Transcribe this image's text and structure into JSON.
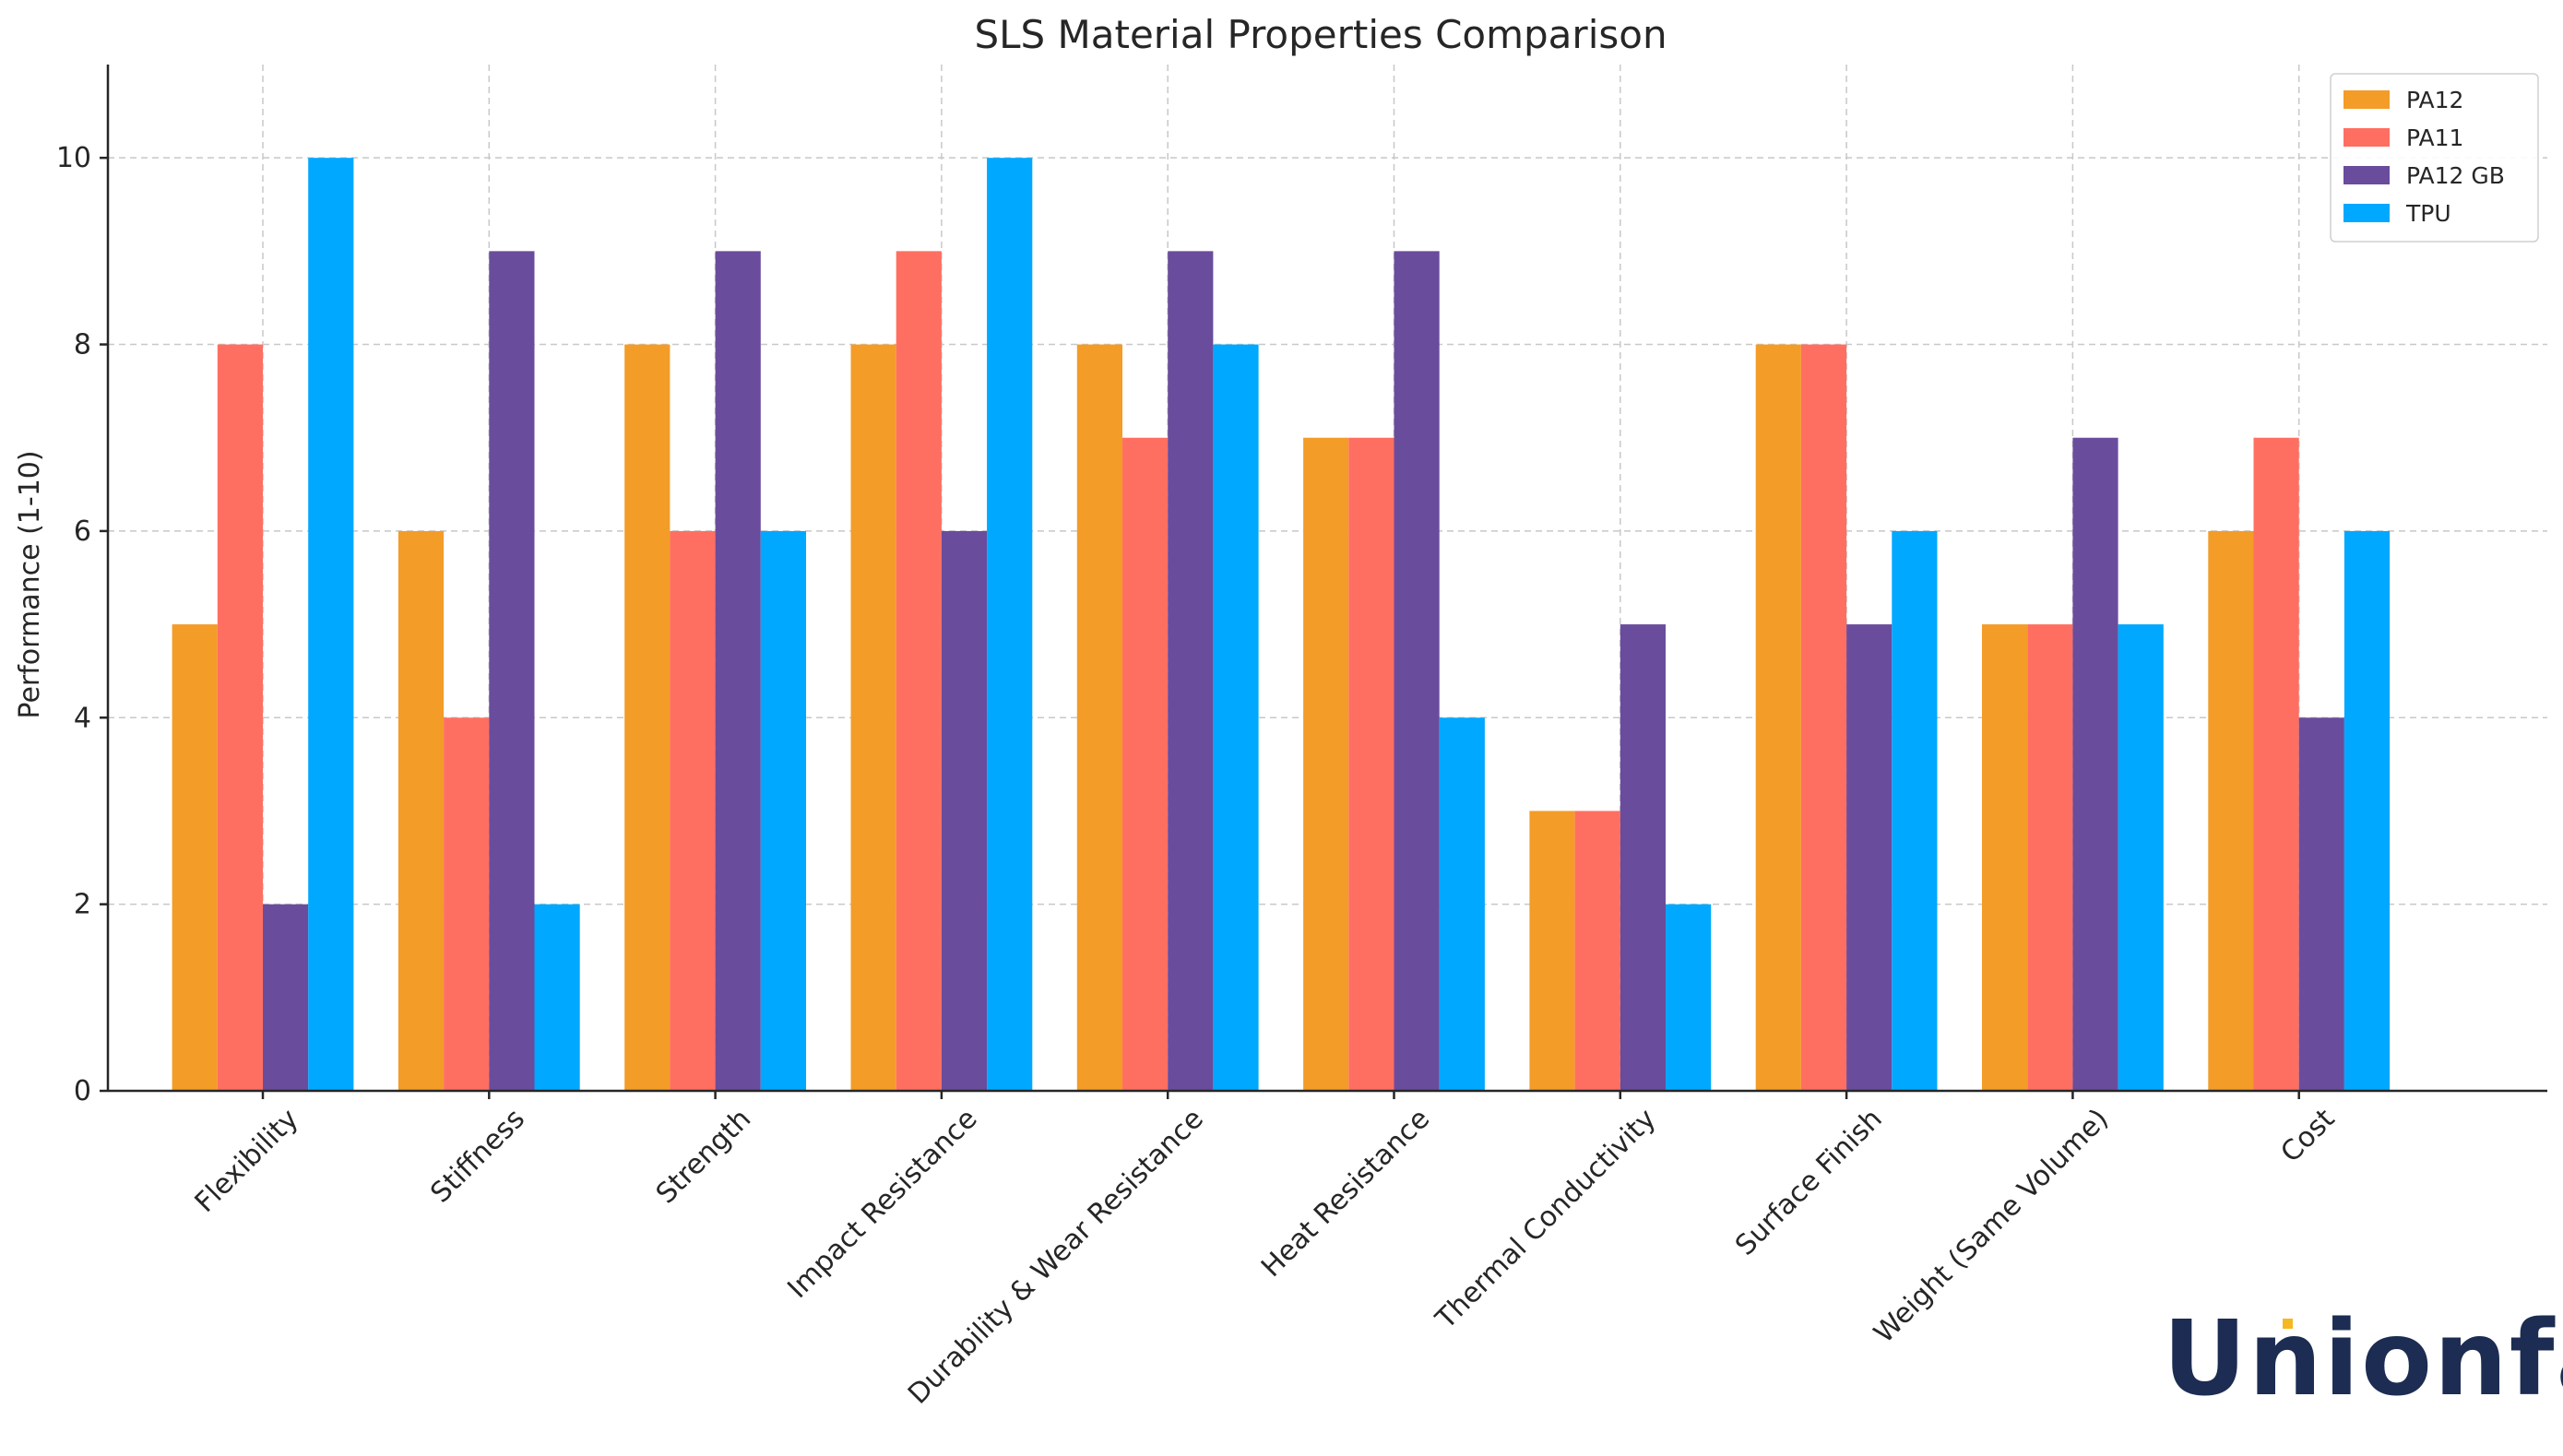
{
  "chart_data": {
    "type": "bar",
    "title": "SLS Material Properties Comparison",
    "xlabel": "",
    "ylabel": "Performance (1-10)",
    "ylim": [
      0,
      11
    ],
    "yticks": [
      0,
      2,
      4,
      6,
      8,
      10
    ],
    "grid": true,
    "legend_position": "top-right",
    "categories": [
      "Flexibility",
      "Stiffness",
      "Strength",
      "Impact Resistance",
      "Durability & Wear Resistance",
      "Heat Resistance",
      "Thermal Conductivity",
      "Surface Finish",
      "Weight (Same Volume)",
      "Cost"
    ],
    "series": [
      {
        "name": "PA12",
        "color": "#f39c28",
        "values": [
          5,
          6,
          8,
          8,
          8,
          7,
          3,
          8,
          5,
          6
        ]
      },
      {
        "name": "PA11",
        "color": "#ff6f61",
        "values": [
          8,
          4,
          6,
          9,
          7,
          7,
          3,
          8,
          5,
          7
        ]
      },
      {
        "name": "PA12 GB",
        "color": "#6a4c9c",
        "values": [
          2,
          9,
          9,
          6,
          9,
          9,
          5,
          5,
          7,
          4
        ]
      },
      {
        "name": "TPU",
        "color": "#00a8ff",
        "values": [
          10,
          2,
          6,
          10,
          8,
          4,
          2,
          6,
          5,
          6
        ]
      }
    ]
  },
  "watermark": {
    "text": "Unionfab",
    "color": "#1c2c52",
    "dot_color": "#f5b820"
  }
}
